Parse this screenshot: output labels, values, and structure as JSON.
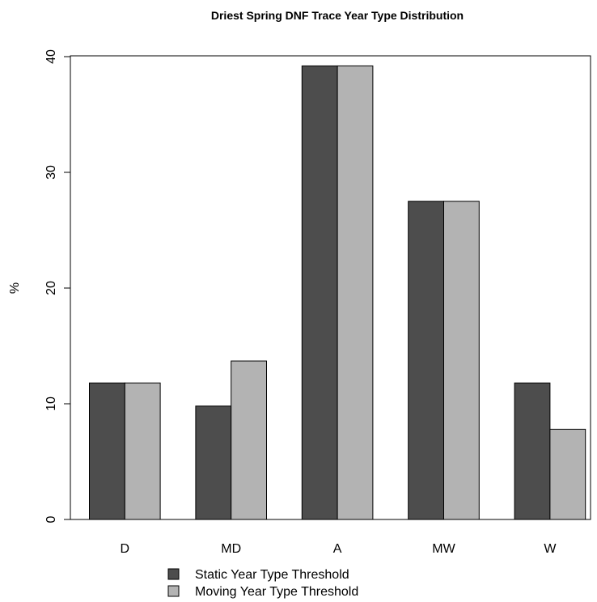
{
  "chart_data": {
    "type": "bar",
    "title": "Driest Spring DNF Trace Year Type Distribution",
    "xlabel": "",
    "ylabel": "%",
    "categories": [
      "D",
      "MD",
      "A",
      "MW",
      "W"
    ],
    "series": [
      {
        "name": "Static Year Type Threshold",
        "color": "#4d4d4d",
        "values": [
          11.8,
          9.8,
          39.2,
          27.5,
          11.8
        ]
      },
      {
        "name": "Moving Year Type Threshold",
        "color": "#b3b3b3",
        "values": [
          11.8,
          13.7,
          39.2,
          27.5,
          7.8
        ]
      }
    ],
    "ylim": [
      0,
      40
    ],
    "yticks": [
      0,
      10,
      20,
      30,
      40
    ],
    "grid": false,
    "legend_position": "bottom"
  }
}
